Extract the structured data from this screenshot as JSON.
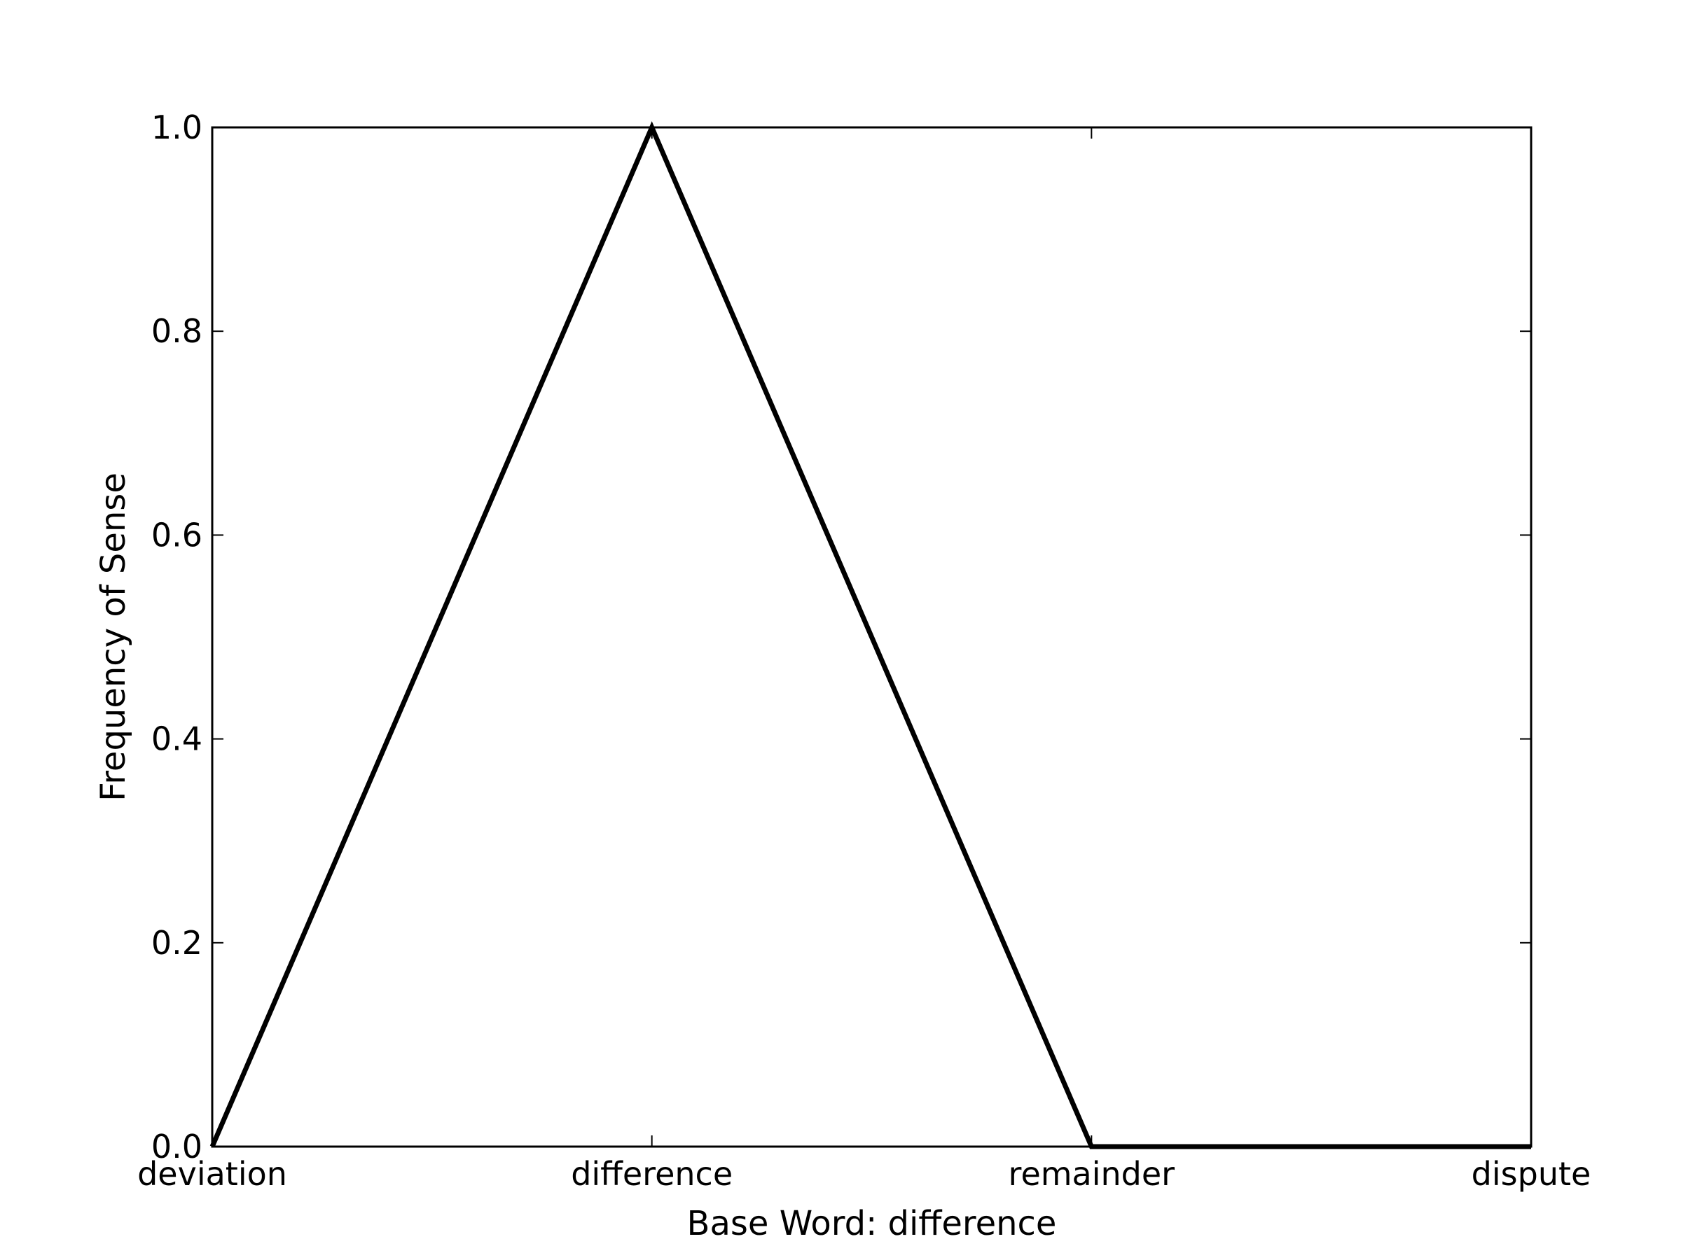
{
  "chart_data": {
    "type": "line",
    "title": "",
    "xlabel": "Base Word: difference",
    "ylabel": "Frequency of Sense",
    "categories": [
      "deviation",
      "difference",
      "remainder",
      "dispute"
    ],
    "series": [
      {
        "values": [
          0.0,
          1.0,
          0.0,
          0.0
        ]
      }
    ],
    "ylim": [
      0.0,
      1.0
    ],
    "yticks": [
      0.0,
      0.2,
      0.4,
      0.6,
      0.8,
      1.0
    ],
    "ytick_labels": [
      "0.0",
      "0.2",
      "0.4",
      "0.6",
      "0.8",
      "1.0"
    ],
    "grid": false,
    "legend": false,
    "line_color": "#000000"
  }
}
